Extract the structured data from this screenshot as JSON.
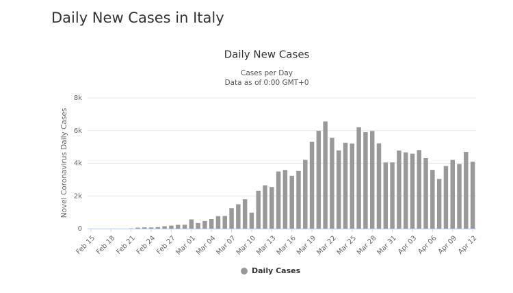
{
  "page_title": "Daily New Cases in Italy",
  "chart_data": {
    "type": "bar",
    "title": "Daily New Cases",
    "subtitle": [
      "Cases per Day",
      "Data as of 0:00 GMT+0"
    ],
    "y_label": "Novel Coronavirus Daily Cases",
    "categories": [
      "Feb 15",
      null,
      null,
      "Feb 18",
      null,
      null,
      "Feb 21",
      null,
      null,
      "Feb 24",
      null,
      null,
      "Feb 27",
      null,
      null,
      "Mar 01",
      null,
      null,
      "Mar 04",
      null,
      null,
      "Mar 07",
      null,
      null,
      "Mar 10",
      null,
      null,
      "Mar 13",
      null,
      null,
      "Mar 16",
      null,
      null,
      "Mar 19",
      null,
      null,
      "Mar 22",
      null,
      null,
      "Mar 25",
      null,
      null,
      "Mar 28",
      null,
      null,
      "Mar 31",
      null,
      null,
      "Apr 03",
      null,
      null,
      "Apr 06",
      null,
      null,
      "Apr 09",
      null,
      null,
      "Apr 12"
    ],
    "series": [
      {
        "name": "Daily Cases",
        "color": "#999999",
        "values": [
          0,
          0,
          0,
          0,
          0,
          0,
          17,
          59,
          78,
          72,
          94,
          147,
          185,
          234,
          239,
          566,
          342,
          466,
          587,
          769,
          778,
          1247,
          1492,
          1797,
          977,
          2313,
          2651,
          2547,
          3497,
          3590,
          3233,
          3526,
          4207,
          5322,
          5986,
          6557,
          5560,
          4789,
          5249,
          5210,
          6203,
          5909,
          5974,
          5217,
          4050,
          4053,
          4782,
          4668,
          4585,
          4805,
          4316,
          3599,
          3039,
          3836,
          4204,
          3951,
          4694,
          4092
        ]
      }
    ],
    "ylim": [
      0,
      8000
    ],
    "yticks": [
      0,
      {
        "value": 2000,
        "label": "2k"
      },
      {
        "value": 4000,
        "label": "4k"
      },
      {
        "value": 6000,
        "label": "6k"
      },
      {
        "value": 8000,
        "label": "8k"
      }
    ],
    "grid": true,
    "legend": "bottom"
  }
}
